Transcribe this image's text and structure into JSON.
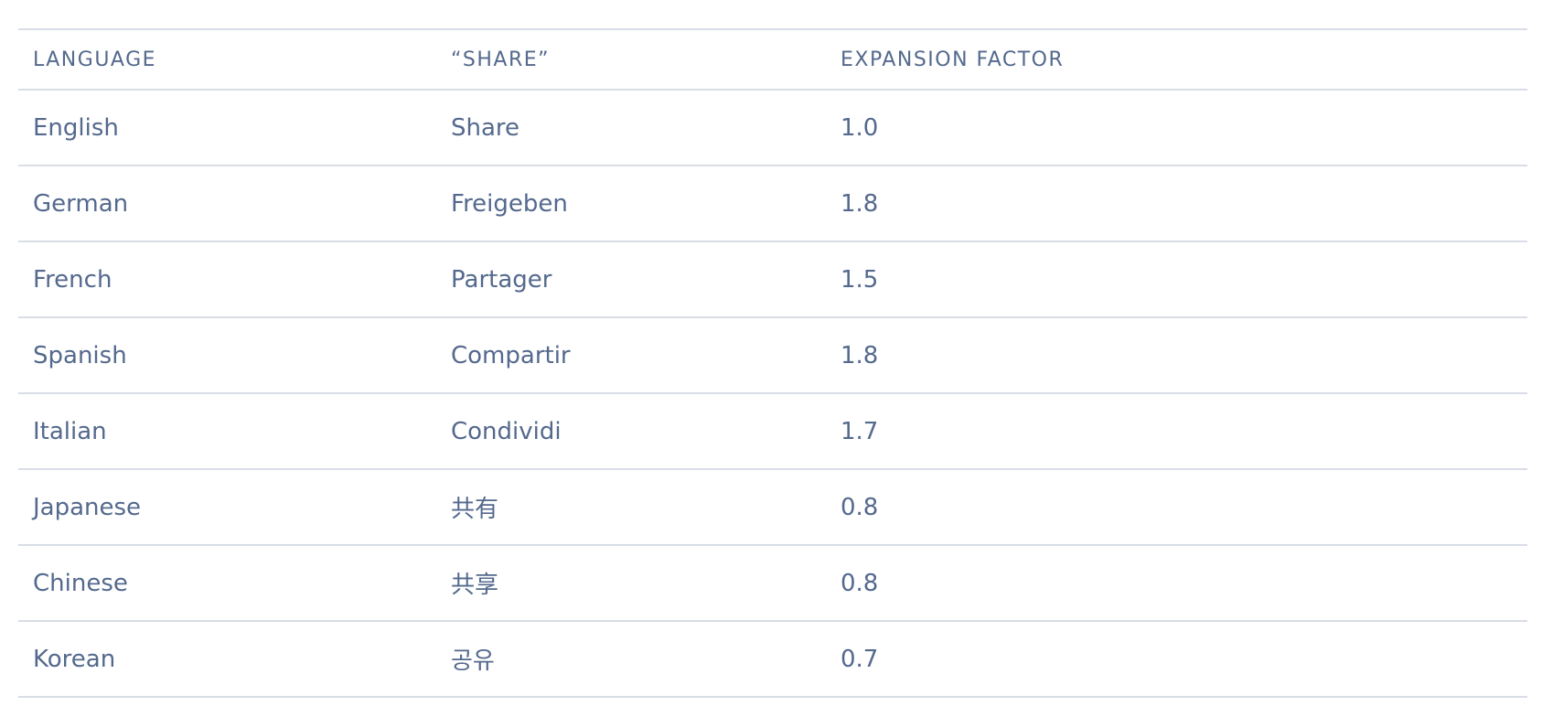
{
  "table": {
    "headers": [
      "LANGUAGE",
      "“SHARE”",
      "EXPANSION FACTOR"
    ],
    "rows": [
      {
        "language": "English",
        "share": "Share",
        "factor": "1.0"
      },
      {
        "language": "German",
        "share": "Freigeben",
        "factor": "1.8"
      },
      {
        "language": "French",
        "share": "Partager",
        "factor": "1.5"
      },
      {
        "language": "Spanish",
        "share": "Compartir",
        "factor": "1.8"
      },
      {
        "language": "Italian",
        "share": "Condividi",
        "factor": "1.7"
      },
      {
        "language": "Japanese",
        "share": "共有",
        "factor": "0.8"
      },
      {
        "language": "Chinese",
        "share": "共享",
        "factor": "0.8"
      },
      {
        "language": "Korean",
        "share": "공유",
        "factor": "0.7"
      }
    ]
  },
  "colors": {
    "text": "#54698d",
    "border": "#d8dde6",
    "background": "#ffffff"
  }
}
